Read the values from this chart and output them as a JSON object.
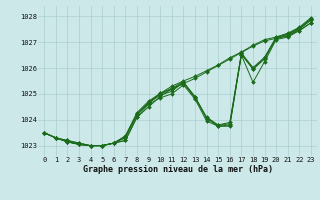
{
  "xlabel": "Graphe pression niveau de la mer (hPa)",
  "ylim": [
    1022.6,
    1028.4
  ],
  "xlim": [
    -0.5,
    23.5
  ],
  "yticks": [
    1023,
    1024,
    1025,
    1026,
    1027,
    1028
  ],
  "xticks": [
    0,
    1,
    2,
    3,
    4,
    5,
    6,
    7,
    8,
    9,
    10,
    11,
    12,
    13,
    14,
    15,
    16,
    17,
    18,
    19,
    20,
    21,
    22,
    23
  ],
  "bg_color": "#cce8e8",
  "grid_color": "#aacfcf",
  "line_color": "#1a6b1a",
  "lines": [
    [
      1023.5,
      1023.3,
      1023.2,
      1023.1,
      1023.0,
      1023.0,
      1023.1,
      1023.2,
      1024.1,
      1024.6,
      1024.85,
      1025.0,
      1025.35,
      1024.8,
      1023.95,
      1023.75,
      1023.75,
      1026.5,
      1025.45,
      1026.25,
      1027.1,
      1027.2,
      1027.45,
      1027.75
    ],
    [
      1023.5,
      1023.3,
      1023.15,
      1023.05,
      1023.0,
      1023.0,
      1023.1,
      1023.3,
      1024.2,
      1024.65,
      1024.95,
      1025.1,
      1025.45,
      1024.9,
      1024.05,
      1023.75,
      1023.8,
      1026.55,
      1025.95,
      1026.35,
      1027.15,
      1027.25,
      1027.5,
      1027.85
    ],
    [
      1023.5,
      1023.3,
      1023.15,
      1023.05,
      1023.0,
      1023.0,
      1023.1,
      1023.35,
      1024.22,
      1024.68,
      1025.0,
      1025.18,
      1025.42,
      1024.85,
      1024.08,
      1023.78,
      1023.85,
      1026.52,
      1025.98,
      1026.38,
      1027.18,
      1027.3,
      1027.52,
      1027.9
    ],
    [
      1023.5,
      1023.3,
      1023.15,
      1023.05,
      1023.0,
      1023.0,
      1023.1,
      1023.38,
      1024.28,
      1024.72,
      1025.02,
      1025.22,
      1025.47,
      1024.88,
      1024.1,
      1023.8,
      1023.9,
      1026.58,
      1026.02,
      1026.42,
      1027.2,
      1027.35,
      1027.58,
      1027.95
    ]
  ],
  "straight_lines": [
    [
      1023.5,
      1023.3,
      1023.2,
      1023.1,
      1023.0,
      1023.0,
      1023.1,
      1023.2,
      1024.1,
      1024.5,
      1024.9,
      1025.2,
      1025.4,
      1025.6,
      1025.85,
      1026.1,
      1026.35,
      1026.6,
      1026.85,
      1027.05,
      1027.15,
      1027.25,
      1027.45,
      1027.75
    ],
    [
      1023.5,
      1023.3,
      1023.15,
      1023.05,
      1023.0,
      1023.0,
      1023.1,
      1023.35,
      1024.22,
      1024.65,
      1025.02,
      1025.3,
      1025.5,
      1025.68,
      1025.9,
      1026.12,
      1026.4,
      1026.62,
      1026.88,
      1027.1,
      1027.2,
      1027.32,
      1027.55,
      1027.9
    ]
  ],
  "marker": "D",
  "marker_size": 2.0,
  "line_width": 0.7,
  "tick_fontsize": 5.0,
  "label_fontsize": 6.0
}
